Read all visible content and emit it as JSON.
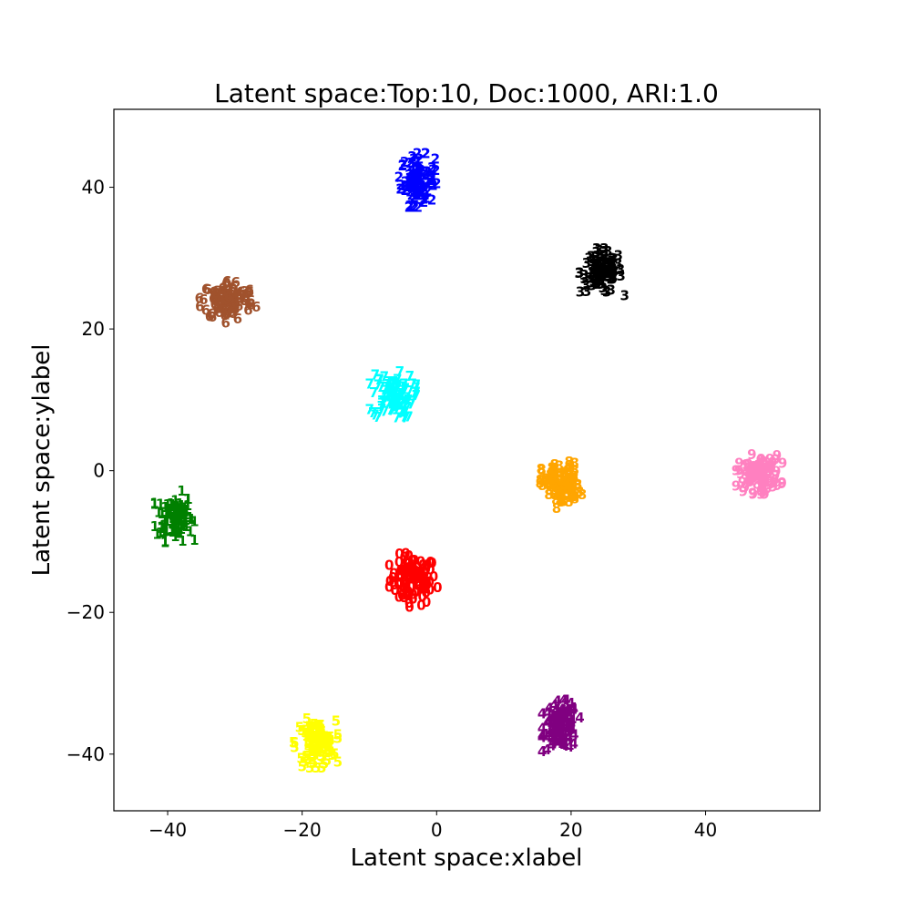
{
  "chart_data": {
    "type": "scatter",
    "title": "Latent space:Top:10, Doc:1000, ARI:1.0",
    "xlabel": "Latent space:xlabel",
    "ylabel": "Latent space:ylabel",
    "xlim": [
      -48,
      57
    ],
    "ylim": [
      -48,
      51
    ],
    "xticks": [
      -40,
      -20,
      0,
      20,
      40
    ],
    "yticks": [
      -40,
      -20,
      0,
      20,
      40
    ],
    "xtick_labels": [
      "−40",
      "−20",
      "0",
      "20",
      "40"
    ],
    "ytick_labels": [
      "−40",
      "−20",
      "0",
      "20",
      "40"
    ],
    "grid": false,
    "marker_style": "cluster digit glyphs",
    "clusters": [
      {
        "label": "0",
        "color": "#ff0000",
        "center": [
          -3.5,
          -15.5
        ],
        "spread": [
          2.3,
          2.3
        ]
      },
      {
        "label": "1",
        "color": "#008000",
        "center": [
          -39.0,
          -6.5
        ],
        "spread": [
          1.8,
          2.2
        ]
      },
      {
        "label": "2",
        "color": "#0000ff",
        "center": [
          -2.8,
          41.0
        ],
        "spread": [
          1.7,
          2.3
        ]
      },
      {
        "label": "3",
        "color": "#000000",
        "center": [
          24.5,
          28.0
        ],
        "spread": [
          2.1,
          2.0
        ]
      },
      {
        "label": "4",
        "color": "#800080",
        "center": [
          18.5,
          -36.0
        ],
        "spread": [
          1.7,
          2.2
        ]
      },
      {
        "label": "5",
        "color": "#ffff00",
        "center": [
          -18.0,
          -38.5
        ],
        "spread": [
          2.0,
          2.1
        ]
      },
      {
        "label": "6",
        "color": "#a0522d",
        "center": [
          -31.0,
          24.0
        ],
        "spread": [
          2.6,
          1.9
        ]
      },
      {
        "label": "7",
        "color": "#00ffff",
        "center": [
          -6.5,
          10.5
        ],
        "spread": [
          2.1,
          2.1
        ]
      },
      {
        "label": "8",
        "color": "#ffa500",
        "center": [
          18.5,
          -2.0
        ],
        "spread": [
          1.9,
          2.0
        ]
      },
      {
        "label": "9",
        "color": "#ff80c0",
        "center": [
          48.0,
          -0.5
        ],
        "spread": [
          2.1,
          1.7
        ]
      }
    ]
  }
}
